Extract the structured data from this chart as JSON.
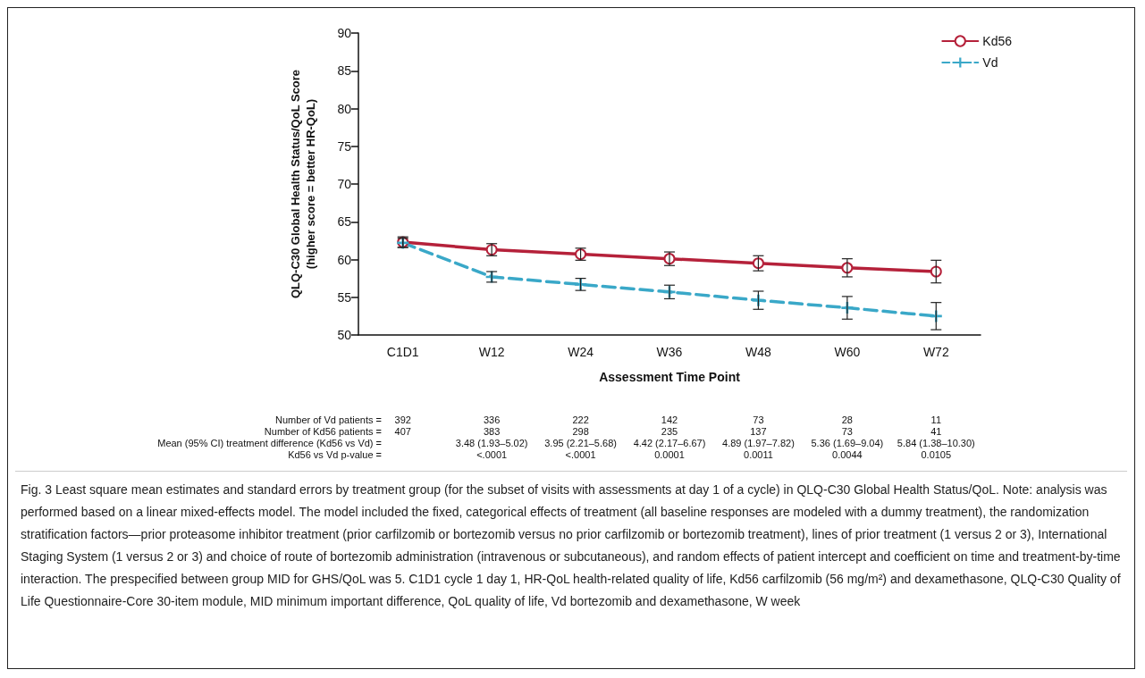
{
  "chart_data": {
    "type": "line",
    "xlabel": "Assessment Time Point",
    "ylabel": "QLQ-C30 Global Health Status/QoL Score\n(higher score = better HR-QoL)",
    "categories": [
      "C1D1",
      "W12",
      "W24",
      "W36",
      "W48",
      "W60",
      "W72"
    ],
    "ylim": [
      50,
      90
    ],
    "yticks": [
      50,
      55,
      60,
      65,
      70,
      75,
      80,
      85,
      90
    ],
    "grid": false,
    "legend": "top right",
    "series": [
      {
        "name": "Kd56",
        "color": "#b5213a",
        "marker": "circle",
        "line_style": "solid",
        "values": [
          62.3,
          61.3,
          60.7,
          60.1,
          59.5,
          58.9,
          58.4
        ],
        "errors": [
          0.7,
          0.8,
          0.8,
          0.9,
          1.0,
          1.2,
          1.5
        ]
      },
      {
        "name": "Vd",
        "color": "#3aa8c8",
        "marker": "cross",
        "line_style": "dashed",
        "values": [
          62.2,
          57.7,
          56.7,
          55.7,
          54.6,
          53.6,
          52.5
        ],
        "errors": [
          0.6,
          0.7,
          0.8,
          0.9,
          1.2,
          1.5,
          1.8
        ]
      }
    ],
    "annotations": [
      "Number of Vd patients =",
      "392",
      "336",
      "222",
      "142",
      "73",
      "28",
      "11",
      "Number of Kd56 patients =",
      "407",
      "383",
      "298",
      "235",
      "137",
      "73",
      "41",
      "Mean (95% CI) treatment difference (Kd56 vs Vd) =",
      null,
      "3.48 (1.93–5.02)",
      "3.95 (2.21–5.68)",
      "4.42 (2.17–6.67)",
      "4.89 (1.97–7.82)",
      "5.36 (1.69–9.04)",
      "5.84 (1.38–10.30)",
      "Kd56 vs Vd p-value =",
      null,
      "<.0001",
      "<.0001",
      "0.0001",
      "0.0011",
      "0.0044",
      "0.0105",
      "Fig. 3 Least square mean estimates and standard errors by treatment group (for the subset of visits with assessments at day 1 of a cycle) in QLQ-C30 Global Health Status/QoL. Note: analysis was performed based on a linear mixed-effects model. The model included the fixed, categorical effects of treatment (all baseline responses are modeled with a dummy treatment), the randomization stratification factors—prior proteasome inhibitor treatment (prior carfilzomib or bortezomib versus no prior carfilzomib or bortezomib treatment), lines of prior treatment (1 versus 2 or 3), International Staging System (1 versus 2 or 3) and choice of route of bortezomib administration (intravenous or subcutaneous), and random effects of patient intercept and coefficient on time and treatment-by-time interaction. The prespecified between group MID for GHS/QoL was 5. C1D1 cycle 1 day 1, HR-QoL health-related quality of life, Kd56 carfilzomib (56 mg/m²) and dexamethasone, QLQ-C30 Quality of Life Questionnaire-Core 30-item module, MID minimum important difference, QoL quality of life, Vd bortezomib and dexamethasone, W week"
    ]
  }
}
